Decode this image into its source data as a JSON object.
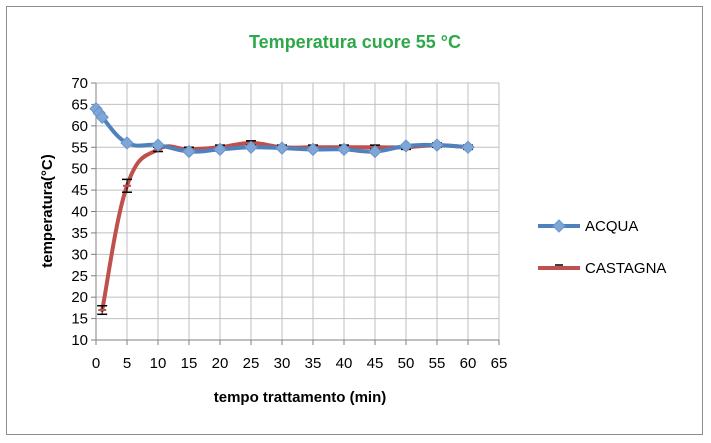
{
  "chart_data": {
    "type": "line",
    "title": "Temperatura cuore 55 °C",
    "title_color": "#2ea84a",
    "xlabel": "tempo trattamento (min)",
    "ylabel": "temperatura(°C)",
    "xlim": [
      0,
      65
    ],
    "ylim": [
      10,
      70
    ],
    "xticks": [
      0,
      5,
      10,
      15,
      20,
      25,
      30,
      35,
      40,
      45,
      50,
      55,
      60,
      65
    ],
    "yticks": [
      10,
      15,
      20,
      25,
      30,
      35,
      40,
      45,
      50,
      55,
      60,
      65,
      70
    ],
    "grid": true,
    "legend_position": "right",
    "series": [
      {
        "name": "ACQUA",
        "color": "#4f81bd",
        "marker": "diamond",
        "x": [
          0,
          0.5,
          1,
          5,
          10,
          15,
          20,
          25,
          30,
          35,
          40,
          45,
          50,
          55,
          60
        ],
        "y": [
          64,
          63,
          62,
          56,
          55.5,
          54,
          54.5,
          55,
          54.8,
          54.5,
          54.5,
          54,
          55.3,
          55.5,
          55
        ]
      },
      {
        "name": "CASTAGNA",
        "color": "#c0504d",
        "marker": "dash",
        "x": [
          1,
          5,
          10,
          15,
          20,
          25,
          30,
          35,
          40,
          45,
          50,
          55,
          60
        ],
        "y": [
          17,
          46,
          54.5,
          54.5,
          55,
          56,
          55,
          55,
          55,
          55,
          55,
          55.5,
          55
        ],
        "error": [
          1,
          1.5,
          0.5,
          0.5,
          0.5,
          0.5,
          0.5,
          0.5,
          0.5,
          0.5,
          0.5,
          0.5,
          0.5
        ]
      }
    ]
  }
}
